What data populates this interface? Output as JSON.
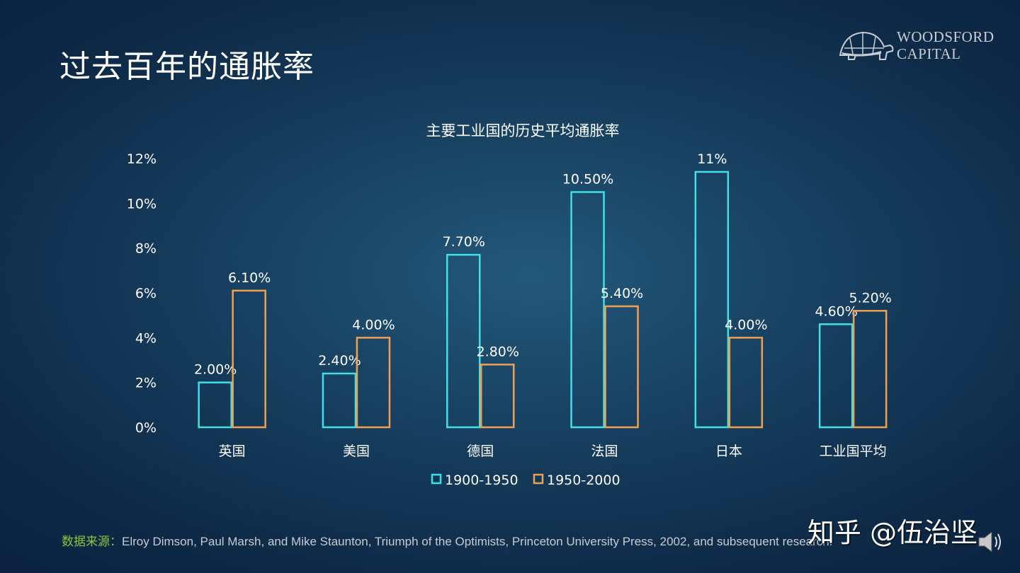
{
  "slide_title": "过去百年的通胀率",
  "logo": {
    "line1": "WOODSFORD",
    "line2": "CAPITAL"
  },
  "chart_data": {
    "type": "bar",
    "title": "主要工业国的历史平均通胀率",
    "categories": [
      "英国",
      "美国",
      "德国",
      "法国",
      "日本",
      "工业国平均"
    ],
    "series": [
      {
        "name": "1900-1950",
        "color": "#3fe0e8",
        "values": [
          2.0,
          2.4,
          7.7,
          10.5,
          11.4,
          4.6
        ],
        "labels": [
          "2.00%",
          "2.40%",
          "7.70%",
          "10.50%",
          "11%",
          "4.60%"
        ]
      },
      {
        "name": "1950-2000",
        "color": "#f0a050",
        "values": [
          6.1,
          4.0,
          2.8,
          5.4,
          4.0,
          5.2
        ],
        "labels": [
          "6.10%",
          "4.00%",
          "2.80%",
          "5.40%",
          "4.00%",
          "5.20%"
        ]
      }
    ],
    "yticks": [
      "0%",
      "2%",
      "4%",
      "6%",
      "8%",
      "10%",
      "12%"
    ],
    "ylim": [
      0,
      12
    ],
    "grid": false,
    "legend": "bottom",
    "bar_style": "outline"
  },
  "source": {
    "label": "数据来源：",
    "text": "Elroy Dimson, Paul Marsh, and Mike Staunton, Triumph of the Optimists, Princeton University Press, 2002, and subsequent research."
  },
  "watermark": "知乎 @伍治坚",
  "icons": {
    "logo": "tortoise-logo",
    "audio": "speaker-icon"
  }
}
